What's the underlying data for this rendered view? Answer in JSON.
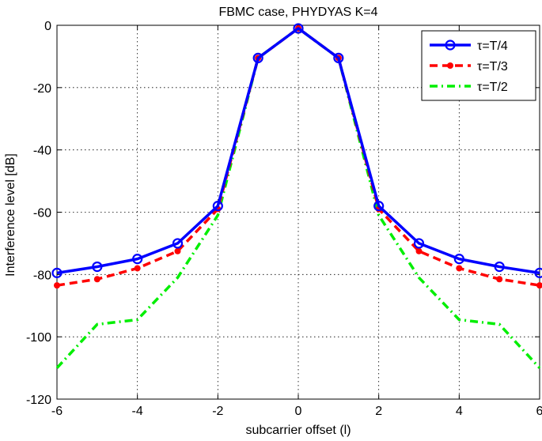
{
  "chart_data": {
    "type": "line",
    "title": "FBMC case, PHYDYAS K=4",
    "xlabel": "subcarrier offset (l)",
    "ylabel": "Interference level [dB]",
    "xlim": [
      -6,
      6
    ],
    "ylim": [
      -120,
      0
    ],
    "x_ticks": [
      "-6",
      "-4",
      "-2",
      "0",
      "2",
      "4",
      "6"
    ],
    "y_ticks": [
      "0",
      "-20",
      "-40",
      "-60",
      "-80",
      "-100",
      "-120"
    ],
    "grid": true,
    "legend_position": "top-right",
    "x": [
      -6,
      -5,
      -4,
      -3,
      -2,
      -1,
      0,
      1,
      2,
      3,
      4,
      5,
      6
    ],
    "series": [
      {
        "name": "τ=T/4",
        "color": "#0000ff",
        "line_style": "solid",
        "marker": "circle",
        "values": [
          -79.5,
          -77.5,
          -75,
          -70,
          -58,
          -10.5,
          -1,
          -10.5,
          -58,
          -70,
          -75,
          -77.5,
          -79.5
        ]
      },
      {
        "name": "τ=T/3",
        "color": "#ff0000",
        "line_style": "dashed",
        "marker": "dot",
        "values": [
          -83.5,
          -81.5,
          -78,
          -72.5,
          -59,
          -10.5,
          -1,
          -10.5,
          -59,
          -72.5,
          -78,
          -81.5,
          -83.5
        ]
      },
      {
        "name": "τ=T/2",
        "color": "#00ee00",
        "line_style": "dash-dot",
        "marker": "none",
        "values": [
          -110,
          -96,
          -94.5,
          -81,
          -61,
          -10.5,
          -1,
          -10.5,
          -61,
          -81,
          -94.5,
          -96,
          -110
        ]
      }
    ]
  }
}
